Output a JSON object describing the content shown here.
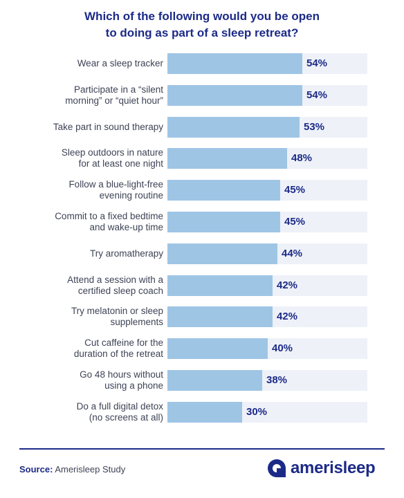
{
  "chart_data": {
    "type": "bar",
    "orientation": "horizontal",
    "title": [
      "Which of the following would you be open",
      "to doing as part of a sleep retreat?"
    ],
    "categories": [
      [
        "Wear a sleep tracker"
      ],
      [
        "Participate in a “silent",
        "morning” or “quiet hour”"
      ],
      [
        "Take part in sound therapy"
      ],
      [
        "Sleep outdoors in nature",
        "for at least one night"
      ],
      [
        "Follow a blue-light-free",
        "evening routine"
      ],
      [
        "Commit to a fixed bedtime",
        "and wake-up time"
      ],
      [
        "Try aromatherapy"
      ],
      [
        "Attend a session with a",
        "certified sleep coach"
      ],
      [
        "Try melatonin or sleep",
        "supplements"
      ],
      [
        "Cut caffeine for the",
        "duration of the retreat"
      ],
      [
        "Go 48 hours without",
        "using a phone"
      ],
      [
        "Do a full digital detox",
        "(no screens at all)"
      ]
    ],
    "values": [
      54,
      54,
      53,
      48,
      45,
      45,
      44,
      42,
      42,
      40,
      38,
      30
    ],
    "value_labels": [
      "54%",
      "54%",
      "53%",
      "48%",
      "45%",
      "45%",
      "44%",
      "42%",
      "42%",
      "40%",
      "38%",
      "30%"
    ],
    "unit": "%",
    "xlim": [
      0,
      80
    ],
    "grid": false,
    "colors": {
      "bar": "#9fc5e5",
      "track": "#eef1f8",
      "accent": "#1c2a87"
    }
  },
  "footer": {
    "source_label": "Source:",
    "source_text": "Amerisleep Study",
    "brand": "amerisleep",
    "brand_icon": "amerisleep-logo-icon"
  }
}
